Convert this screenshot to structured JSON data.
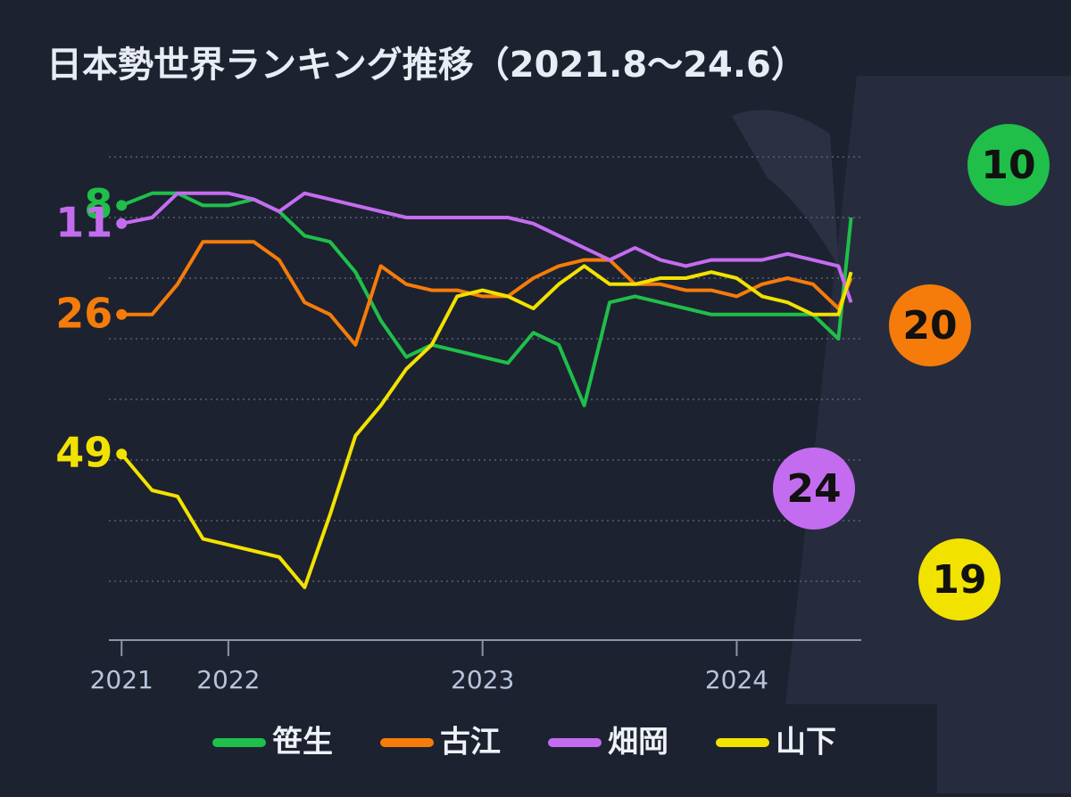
{
  "chart_data": {
    "type": "line",
    "title": "日本勢世界ランキング推移（2021.8～24.6）",
    "x": [
      2021.58,
      2021.7,
      2021.8,
      2021.9,
      2022.0,
      2022.1,
      2022.2,
      2022.3,
      2022.4,
      2022.5,
      2022.6,
      2022.7,
      2022.8,
      2022.9,
      2023.0,
      2023.1,
      2023.2,
      2023.3,
      2023.4,
      2023.5,
      2023.6,
      2023.7,
      2023.8,
      2023.9,
      2024.0,
      2024.1,
      2024.2,
      2024.3,
      2024.4,
      2024.45
    ],
    "series": [
      {
        "name": "笹生",
        "color": "#1fbf4a",
        "values": [
          8,
          6,
          6,
          8,
          8,
          7,
          9,
          13,
          14,
          19,
          27,
          33,
          31,
          32,
          33,
          34,
          29,
          31,
          41,
          24,
          23,
          24,
          25,
          26,
          26,
          26,
          26,
          26,
          30,
          10
        ]
      },
      {
        "name": "古江",
        "color": "#f57c0a",
        "values": [
          26,
          26,
          21,
          14,
          14,
          14,
          17,
          24,
          26,
          31,
          18,
          21,
          22,
          22,
          23,
          23,
          20,
          18,
          17,
          17,
          21,
          21,
          22,
          22,
          23,
          21,
          20,
          21,
          25,
          20
        ]
      },
      {
        "name": "畑岡",
        "color": "#c46cf0",
        "values": [
          11,
          10,
          6,
          6,
          6,
          7,
          9,
          6,
          7,
          8,
          9,
          10,
          10,
          10,
          10,
          10,
          11,
          13,
          15,
          17,
          15,
          17,
          18,
          17,
          17,
          17,
          16,
          17,
          18,
          24
        ]
      },
      {
        "name": "山下",
        "color": "#f2e200",
        "values": [
          49,
          55,
          56,
          63,
          64,
          65,
          66,
          71,
          59,
          46,
          41,
          35,
          31,
          23,
          22,
          23,
          25,
          21,
          18,
          21,
          21,
          20,
          20,
          19,
          20,
          23,
          24,
          26,
          26,
          19
        ]
      }
    ],
    "xlim": [
      2021.53,
      2024.49
    ],
    "xticks": [
      {
        "value": 2021.58,
        "label": "2021"
      },
      2022,
      2023,
      2024
    ],
    "ylim": [
      80,
      0
    ],
    "yticks": [
      0,
      10,
      20,
      30,
      40,
      50,
      60,
      70
    ],
    "grid": true
  }
}
